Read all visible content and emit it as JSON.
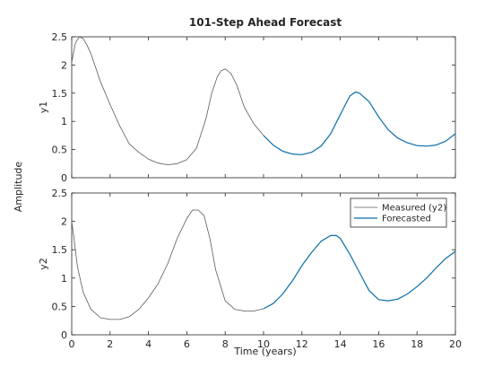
{
  "chart_data": {
    "type": "line",
    "title": "101-Step Ahead Forecast",
    "xlabel": "Time (years)",
    "ylabel": "Amplitude",
    "xlim": [
      0,
      20
    ],
    "xticks": [
      "0",
      "2",
      "4",
      "6",
      "8",
      "10",
      "12",
      "14",
      "16",
      "18",
      "20"
    ],
    "colors": {
      "measured": "#5a5a5a",
      "forecast": "#0a6ea8"
    },
    "subplots": [
      {
        "ylabel": "y1",
        "ylim": [
          0,
          2.5
        ],
        "yticks": [
          "0",
          "0.5",
          "1",
          "1.5",
          "2",
          "2.5"
        ],
        "series": [
          {
            "role": "measured",
            "x": [
              0,
              0.2,
              0.4,
              0.6,
              0.8,
              1.0,
              1.2,
              1.5,
              2.0,
              2.5,
              3.0,
              3.5,
              4.0,
              4.5,
              5.0,
              5.5,
              6.0,
              6.5,
              7.0,
              7.3,
              7.6,
              7.8,
              8.0,
              8.3,
              8.6,
              9.0,
              9.5,
              10.0
            ],
            "y": [
              2.05,
              2.4,
              2.5,
              2.47,
              2.35,
              2.2,
              2.0,
              1.7,
              1.3,
              0.92,
              0.6,
              0.45,
              0.33,
              0.26,
              0.23,
              0.25,
              0.32,
              0.52,
              1.05,
              1.5,
              1.8,
              1.9,
              1.93,
              1.85,
              1.65,
              1.25,
              0.95,
              0.75
            ]
          },
          {
            "role": "forecast",
            "x": [
              10.0,
              10.5,
              11.0,
              11.5,
              12.0,
              12.5,
              13.0,
              13.5,
              14.0,
              14.5,
              14.8,
              15.0,
              15.5,
              16.0,
              16.5,
              17.0,
              17.5,
              18.0,
              18.5,
              19.0,
              19.5,
              20.0
            ],
            "y": [
              0.75,
              0.58,
              0.47,
              0.42,
              0.41,
              0.45,
              0.56,
              0.78,
              1.12,
              1.45,
              1.52,
              1.5,
              1.35,
              1.08,
              0.85,
              0.7,
              0.62,
              0.57,
              0.56,
              0.58,
              0.65,
              0.78
            ]
          }
        ]
      },
      {
        "ylabel": "y2",
        "ylim": [
          0,
          2.5
        ],
        "yticks": [
          "0",
          "0.5",
          "1",
          "1.5",
          "2",
          "2.5"
        ],
        "legend": {
          "position": "top-right",
          "entries": [
            {
              "label": "Measured (y2)",
              "role": "measured"
            },
            {
              "label": "Forecasted",
              "role": "forecast"
            }
          ]
        },
        "series": [
          {
            "role": "measured",
            "x": [
              0,
              0.1,
              0.3,
              0.6,
              1.0,
              1.5,
              2.0,
              2.5,
              3.0,
              3.5,
              4.0,
              4.5,
              5.0,
              5.5,
              6.0,
              6.3,
              6.6,
              6.9,
              7.2,
              7.5,
              8.0,
              8.5,
              9.0,
              9.5,
              10.0
            ],
            "y": [
              2.0,
              1.75,
              1.2,
              0.75,
              0.45,
              0.3,
              0.27,
              0.27,
              0.32,
              0.45,
              0.65,
              0.9,
              1.25,
              1.7,
              2.05,
              2.2,
              2.2,
              2.1,
              1.7,
              1.15,
              0.6,
              0.45,
              0.42,
              0.42,
              0.46
            ]
          },
          {
            "role": "forecast",
            "x": [
              10.0,
              10.5,
              11.0,
              11.5,
              12.0,
              12.5,
              13.0,
              13.5,
              13.8,
              14.0,
              14.5,
              15.0,
              15.5,
              16.0,
              16.5,
              17.0,
              17.5,
              18.0,
              18.5,
              19.0,
              19.5,
              20.0
            ],
            "y": [
              0.46,
              0.55,
              0.72,
              0.95,
              1.22,
              1.45,
              1.65,
              1.75,
              1.75,
              1.7,
              1.42,
              1.1,
              0.78,
              0.62,
              0.6,
              0.63,
              0.72,
              0.85,
              1.0,
              1.18,
              1.35,
              1.47
            ]
          }
        ]
      }
    ]
  }
}
